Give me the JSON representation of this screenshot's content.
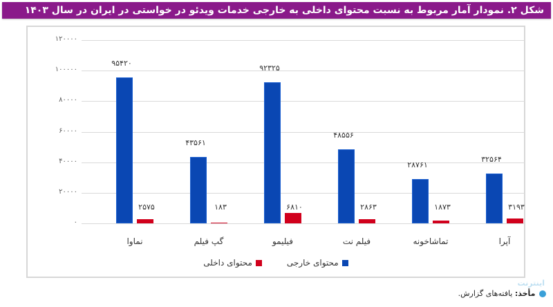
{
  "title": "شکل ۲. نمودار آمار مربوط به نسبت محتوای داخلی به خارجی خدمات ویدئو در خواستی در ایران در سال ۱۴۰۳",
  "y_ticks": [
    "۱۲۰۰۰۰",
    "۱۰۰۰۰۰",
    "۸۰۰۰۰",
    "۶۰۰۰۰",
    "۴۰۰۰۰",
    "۲۰۰۰۰",
    "۰"
  ],
  "categories": [
    {
      "label": "نماوا",
      "external": 95420,
      "external_label": "۹۵۴۲۰",
      "domestic": 2575,
      "domestic_label": "۲۵۷۵"
    },
    {
      "label": "گپ فیلم",
      "external": 43561,
      "external_label": "۴۳۵۶۱",
      "domestic": 183,
      "domestic_label": "۱۸۳"
    },
    {
      "label": "فیلیمو",
      "external": 92325,
      "external_label": "۹۲۳۲۵",
      "domestic": 6810,
      "domestic_label": "۶۸۱۰"
    },
    {
      "label": "فیلم نت",
      "external": 48556,
      "external_label": "۴۸۵۵۶",
      "domestic": 2863,
      "domestic_label": "۲۸۶۳"
    },
    {
      "label": "تماشاخونه",
      "external": 28761,
      "external_label": "۲۸۷۶۱",
      "domestic": 1873,
      "domestic_label": "۱۸۷۳"
    },
    {
      "label": "آپرا",
      "external": 32564,
      "external_label": "۳۲۵۶۴",
      "domestic": 3193,
      "domestic_label": "۳۱۹۳"
    }
  ],
  "legend": {
    "external": "محتوای خارجی",
    "domestic": "محتوای داخلی"
  },
  "colors": {
    "external": "#0a47b3",
    "domestic": "#d1001c",
    "title_bg": "#8a1a8a"
  },
  "source": {
    "prefix": "مأخذ:",
    "text": "یافته‌های گزارش."
  },
  "watermark": "اینترنت",
  "chart_data": {
    "type": "bar",
    "title": "شکل ۲. نمودار آمار مربوط به نسبت محتوای داخلی به خارجی خدمات ویدئو در خواستی در ایران در سال ۱۴۰۳",
    "categories": [
      "نماوا",
      "گپ فیلم",
      "فیلیمو",
      "فیلم نت",
      "تماشاخونه",
      "آپرا"
    ],
    "series": [
      {
        "name": "محتوای خارجی",
        "color": "#0a47b3",
        "values": [
          95420,
          43561,
          92325,
          48556,
          28761,
          32564
        ]
      },
      {
        "name": "محتوای داخلی",
        "color": "#d1001c",
        "values": [
          2575,
          183,
          6810,
          2863,
          1873,
          3193
        ]
      }
    ],
    "xlabel": "",
    "ylabel": "",
    "ylim": [
      0,
      120000
    ],
    "yticks": [
      0,
      20000,
      40000,
      60000,
      80000,
      100000,
      120000
    ],
    "grid": true,
    "legend_position": "bottom"
  }
}
